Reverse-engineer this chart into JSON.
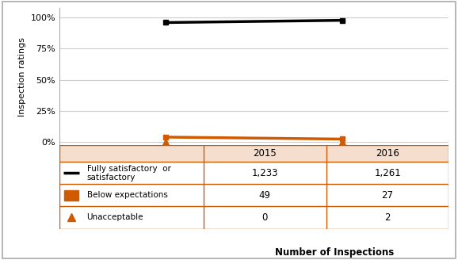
{
  "years": [
    2015,
    2016
  ],
  "fully_satisfactory_pct": [
    96.1,
    97.9
  ],
  "below_expectations_pct": [
    3.7,
    2.1
  ],
  "unacceptable_pct": [
    0.0,
    0.15
  ],
  "fully_satisfactory_n": [
    "1,233",
    "1,261"
  ],
  "below_expectations_n": [
    "49",
    "27"
  ],
  "unacceptable_n": [
    "0",
    "2"
  ],
  "line_color_black": "#000000",
  "line_color_orange": "#D05A00",
  "marker_color_orange": "#D05A00",
  "table_bg_header": "#F5DECE",
  "table_bg_white": "#FFFFFF",
  "table_border_color": "#D05A00",
  "ylabel": "Inspection ratings",
  "xlabel": "Number of Inspections",
  "yticks": [
    0,
    25,
    50,
    75,
    100
  ],
  "ytick_labels": [
    "0%",
    "25%",
    "50%",
    "75%",
    "100%"
  ],
  "col_headers": [
    "2015",
    "2016"
  ],
  "row_labels": [
    "Fully satisfactory  or\nsatisfactory",
    "Below expectations",
    "Unacceptable"
  ],
  "chart_bg": "#FFFFFF",
  "grid_color": "#CCCCCC",
  "outer_border_color": "#AAAAAA"
}
